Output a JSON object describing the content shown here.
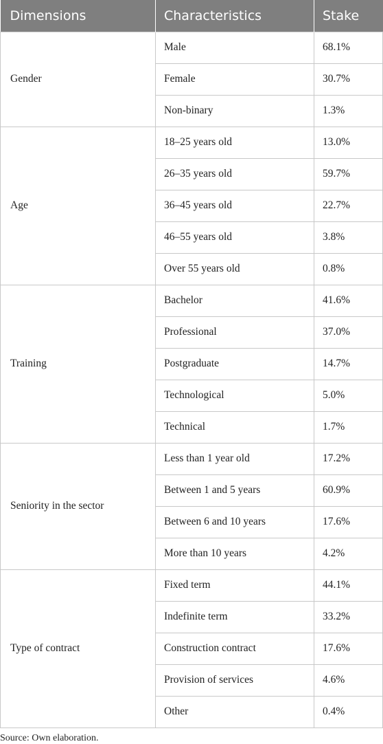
{
  "table": {
    "headers": [
      "Dimensions",
      "Characteristics",
      "Stake"
    ],
    "groups": [
      {
        "dimension": "Gender",
        "rows": [
          {
            "characteristic": "Male",
            "stake": "68.1%"
          },
          {
            "characteristic": "Female",
            "stake": "30.7%"
          },
          {
            "characteristic": "Non-binary",
            "stake": "1.3%"
          }
        ]
      },
      {
        "dimension": "Age",
        "rows": [
          {
            "characteristic": "18–25 years old",
            "stake": "13.0%"
          },
          {
            "characteristic": "26–35 years old",
            "stake": "59.7%"
          },
          {
            "characteristic": "36–45 years old",
            "stake": "22.7%"
          },
          {
            "characteristic": "46–55 years old",
            "stake": "3.8%"
          },
          {
            "characteristic": "Over 55 years old",
            "stake": "0.8%"
          }
        ]
      },
      {
        "dimension": "Training",
        "rows": [
          {
            "characteristic": "Bachelor",
            "stake": "41.6%"
          },
          {
            "characteristic": "Professional",
            "stake": "37.0%"
          },
          {
            "characteristic": "Postgraduate",
            "stake": "14.7%"
          },
          {
            "characteristic": "Technological",
            "stake": "5.0%"
          },
          {
            "characteristic": "Technical",
            "stake": "1.7%"
          }
        ]
      },
      {
        "dimension": "Seniority in the sector",
        "rows": [
          {
            "characteristic": "Less than 1 year old",
            "stake": "17.2%"
          },
          {
            "characteristic": "Between 1 and 5 years",
            "stake": "60.9%"
          },
          {
            "characteristic": "Between 6 and 10 years",
            "stake": "17.6%"
          },
          {
            "characteristic": "More than 10 years",
            "stake": "4.2%"
          }
        ]
      },
      {
        "dimension": "Type of contract",
        "rows": [
          {
            "characteristic": "Fixed term",
            "stake": "44.1%"
          },
          {
            "characteristic": "Indefinite term",
            "stake": "33.2%"
          },
          {
            "characteristic": "Construction contract",
            "stake": "17.6%"
          },
          {
            "characteristic": "Provision of services",
            "stake": "4.6%"
          },
          {
            "characteristic": "Other",
            "stake": "0.4%"
          }
        ]
      }
    ]
  },
  "footer": {
    "source": "Source: Own elaboration."
  },
  "colors": {
    "header_bg": "#7f7f7f",
    "header_text": "#ffffff",
    "border": "#c8c8c8"
  }
}
